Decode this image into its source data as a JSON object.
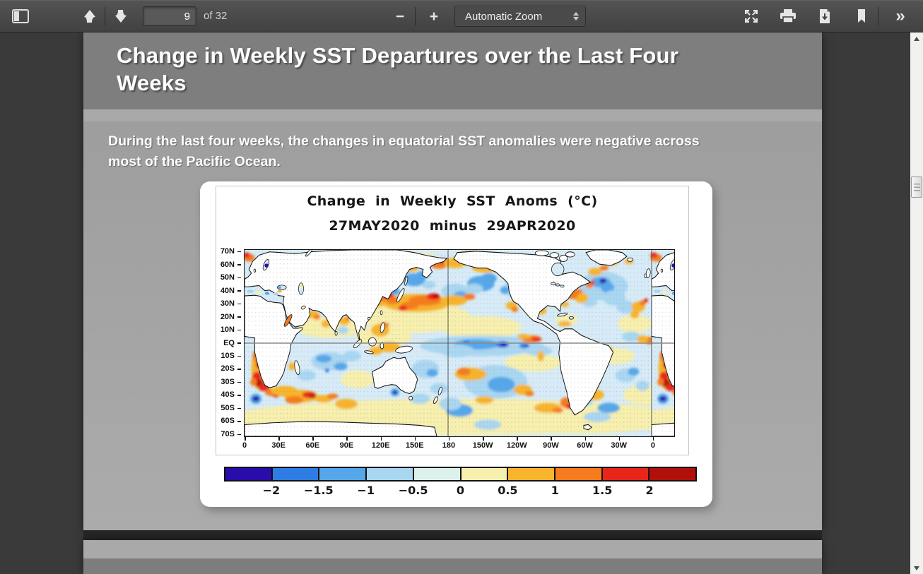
{
  "toolbar": {
    "page_number": "9",
    "page_count_label": "of 32",
    "zoom_label": "Automatic Zoom",
    "minus_label": "−",
    "plus_label": "+",
    "more_tools_label": "»"
  },
  "slide": {
    "title_lines": [
      "Change in Weekly SST Departures over the Last Four",
      "Weeks"
    ],
    "body_lines": [
      "During the last four weeks, the changes in equatorial SST anomalies were negative across",
      "most of the Pacific Ocean."
    ]
  },
  "chart_data": {
    "type": "heatmap",
    "title": "Change in Weekly SST Anoms (°C)",
    "subtitle": "27MAY2020 minus 29APR2020",
    "projection": "global equirectangular map, 70N-70S, longitude 0 eastward through 180 to 0",
    "y_ticks": [
      "70N",
      "60N",
      "50N",
      "40N",
      "30N",
      "20N",
      "10N",
      "EQ",
      "10S",
      "20S",
      "30S",
      "40S",
      "50S",
      "60S",
      "70S"
    ],
    "x_ticks": [
      "0",
      "30E",
      "60E",
      "90E",
      "120E",
      "150E",
      "180",
      "150W",
      "120W",
      "90W",
      "60W",
      "30W",
      "0"
    ],
    "colorbar": {
      "units": "°C",
      "tick_labels": [
        "−2",
        "−1.5",
        "−1",
        "−0.5",
        "0",
        "0.5",
        "1",
        "1.5",
        "2"
      ],
      "tick_values": [
        -2,
        -1.5,
        -1,
        -0.5,
        0,
        0.5,
        1,
        1.5,
        2
      ],
      "colors": [
        "#2a0caa",
        "#2e7de5",
        "#55a7ea",
        "#a9d6f1",
        "#ddf1ec",
        "#f6efad",
        "#f7b42c",
        "#f57b1e",
        "#e9251a",
        "#b01009"
      ]
    }
  }
}
